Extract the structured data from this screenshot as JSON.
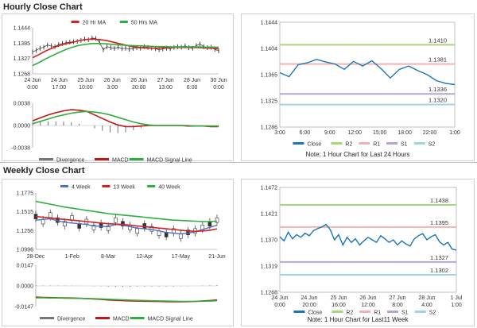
{
  "titles": {
    "hourly": "Hourly Close Chart",
    "weekly": "Weekly Close Chart"
  },
  "notes": {
    "hourly": "Note: 1 Hour Chart for Last 24 Hours",
    "weekly": "Note: 1 Hour Chart for Last11 Week"
  },
  "colors": {
    "price": "#333333",
    "ma_short": "#d42020",
    "ma_long": "#2fae3f",
    "four_week": "#4a74c8",
    "macd": "#c01818",
    "signal": "#2fae3f",
    "divergence": "#777777",
    "close": "#1b75b8",
    "r2": "#a8d67a",
    "r1": "#f0b2b2",
    "s1": "#b9a3d0",
    "s2": "#9fd3e8"
  },
  "chart_data": [
    {
      "id": "hourly_price",
      "type": "line",
      "x_ticks": [
        "24 Jun\n0:00",
        "24 Jun\n17:00",
        "25 Jun\n10:00",
        "26 Jun\n3:00",
        "26 Jun\n20:00",
        "27 Jun\n13:00",
        "28 Jun\n6:00",
        "30 Jun\n0:00"
      ],
      "y_ticks": [
        "1.1444",
        "1.1385",
        "1.1327",
        "1.1268"
      ],
      "ylim": [
        1.1268,
        1.1444
      ],
      "legend": [
        "20 Hr MA",
        "50 Hrs MA"
      ],
      "series": [
        {
          "name": "Price",
          "style": "ohlc",
          "values": [
            1.1352,
            1.1358,
            1.1366,
            1.137,
            1.1378,
            1.1375,
            1.1372,
            1.138,
            1.1384,
            1.1387,
            1.1389,
            1.1391,
            1.1392,
            1.1396,
            1.1401,
            1.1398,
            1.1405,
            1.1403,
            1.1388,
            1.136,
            1.1372,
            1.1368,
            1.1365,
            1.137,
            1.1364,
            1.1366,
            1.1362,
            1.1365,
            1.1368,
            1.1366,
            1.1372,
            1.1369,
            1.1367,
            1.1364,
            1.136,
            1.1363,
            1.1366,
            1.1364,
            1.1369,
            1.1372,
            1.137,
            1.1375,
            1.1368,
            1.1366,
            1.1376,
            1.1382,
            1.1372,
            1.1368,
            1.137,
            1.1362,
            1.1356
          ]
        },
        {
          "name": "20 Hr MA",
          "values": [
            1.133,
            1.1342,
            1.1356,
            1.1367,
            1.1376,
            1.1383,
            1.1388,
            1.1395,
            1.1399,
            1.1401,
            1.1399,
            1.1396,
            1.139,
            1.1384,
            1.1378,
            1.1372,
            1.1369,
            1.1367,
            1.1366,
            1.1366,
            1.1368,
            1.1369,
            1.1369,
            1.1369,
            1.1369,
            1.1368,
            1.1367,
            1.1366,
            1.1364
          ]
        },
        {
          "name": "50 Hrs MA",
          "values": [
            1.13,
            1.1312,
            1.1326,
            1.1338,
            1.135,
            1.1361,
            1.137,
            1.1377,
            1.1381,
            1.1384,
            1.1384,
            1.1383,
            1.1381,
            1.1379,
            1.1377,
            1.1376,
            1.1375,
            1.1374,
            1.1373,
            1.1372,
            1.1372,
            1.1371,
            1.1371,
            1.1371,
            1.1371,
            1.1371,
            1.137,
            1.137,
            1.137
          ]
        }
      ]
    },
    {
      "id": "hourly_macd",
      "type": "line",
      "y_ticks": [
        "0.0038",
        "0.0000",
        "-0.0038"
      ],
      "ylim": [
        -0.0038,
        0.0038
      ],
      "legend": [
        "Divergence",
        "MACD",
        "MACD Signal Line"
      ],
      "series": [
        {
          "name": "MACD",
          "values": [
            0.0008,
            0.0013,
            0.0018,
            0.0022,
            0.0025,
            0.0027,
            0.0026,
            0.0024,
            0.0018,
            0.0012,
            0.0006,
            0.0001,
            -0.0002,
            -0.0002,
            -0.0001,
            0,
            0,
            0,
            0,
            0,
            -0.0001,
            -0.0001,
            -0.0001,
            -0.0002,
            -0.0002
          ]
        },
        {
          "name": "MACD Signal Line",
          "values": [
            0.0003,
            0.0007,
            0.0011,
            0.0015,
            0.0018,
            0.0021,
            0.0023,
            0.0024,
            0.0023,
            0.0021,
            0.0018,
            0.0014,
            0.001,
            0.0006,
            0.0003,
            0.0001,
            0,
            0,
            0,
            0,
            0,
            -0.0001,
            -0.0001,
            -0.0001,
            -0.0001
          ]
        },
        {
          "name": "Divergence",
          "values": [
            0.0005,
            0.0006,
            0.0007,
            0.0007,
            0.0007,
            0.0006,
            0.0003,
            0,
            -0.0005,
            -0.0009,
            -0.0012,
            -0.0013,
            -0.0012,
            -0.0008,
            -0.0004,
            -0.0001,
            0,
            0,
            0,
            0,
            -0.0001,
            0,
            0,
            -0.0001,
            -0.0001
          ]
        }
      ]
    },
    {
      "id": "hourly_levels",
      "type": "line",
      "x_ticks": [
        "3:00",
        "6:00",
        "9:00",
        "12:00",
        "15:00",
        "18:00",
        "22:00",
        "1:00"
      ],
      "y_ticks": [
        "1.1444",
        "1.1404",
        "1.1365",
        "1.1325",
        "1.1286"
      ],
      "ylim": [
        1.1286,
        1.1444
      ],
      "legend": [
        "Close",
        "R2",
        "R1",
        "S1",
        "S2"
      ],
      "levels": [
        {
          "name": "R2",
          "value": 1.141,
          "label": "1.1410"
        },
        {
          "name": "R1",
          "value": 1.1381,
          "label": "1.1381"
        },
        {
          "name": "S1",
          "value": 1.1336,
          "label": "1.1336"
        },
        {
          "name": "S2",
          "value": 1.132,
          "label": "1.1320"
        }
      ],
      "series": [
        {
          "name": "Close",
          "values": [
            1.1368,
            1.1362,
            1.138,
            1.1383,
            1.1388,
            1.1384,
            1.1381,
            1.1373,
            1.1385,
            1.1378,
            1.1386,
            1.1374,
            1.136,
            1.1373,
            1.1378,
            1.1371,
            1.1365,
            1.1356,
            1.1352,
            1.135
          ]
        }
      ]
    },
    {
      "id": "weekly_price",
      "type": "line",
      "x_ticks": [
        "28-Dec",
        "1-Feb",
        "8-Mar",
        "12-Apr",
        "17-May",
        "21-Jun"
      ],
      "y_ticks": [
        "1.1775",
        "1.1515",
        "1.1256",
        "1.0996"
      ],
      "ylim": [
        1.0996,
        1.1775
      ],
      "legend": [
        "4 Week",
        "13 Week",
        "40 Week"
      ],
      "series": [
        {
          "name": "Price",
          "style": "candle",
          "values": [
            1.145,
            1.138,
            1.147,
            1.14,
            1.135,
            1.143,
            1.132,
            1.138,
            1.13,
            1.133,
            1.129,
            1.14,
            1.135,
            1.13,
            1.125,
            1.132,
            1.128,
            1.122,
            1.12,
            1.125,
            1.118,
            1.123,
            1.125,
            1.13,
            1.135,
            1.14
          ]
        },
        {
          "name": "4 Week",
          "values": [
            1.14,
            1.141,
            1.142,
            1.139,
            1.137,
            1.136,
            1.135,
            1.134,
            1.132,
            1.1315,
            1.131,
            1.134,
            1.133,
            1.131,
            1.129,
            1.128,
            1.127,
            1.125,
            1.123,
            1.122,
            1.121,
            1.122,
            1.124,
            1.127,
            1.13,
            1.133
          ]
        },
        {
          "name": "13 Week",
          "values": [
            1.145,
            1.144,
            1.143,
            1.142,
            1.141,
            1.14,
            1.139,
            1.138,
            1.137,
            1.136,
            1.135,
            1.1345,
            1.134,
            1.133,
            1.132,
            1.131,
            1.13,
            1.129,
            1.128,
            1.127,
            1.126,
            1.125,
            1.1245,
            1.125,
            1.126,
            1.128
          ]
        },
        {
          "name": "40 Week",
          "values": [
            1.166,
            1.164,
            1.162,
            1.16,
            1.158,
            1.1565,
            1.155,
            1.1535,
            1.152,
            1.1505,
            1.149,
            1.148,
            1.147,
            1.146,
            1.145,
            1.144,
            1.143,
            1.142,
            1.141,
            1.14,
            1.1395,
            1.139,
            1.1385,
            1.138,
            1.138,
            1.1385
          ]
        }
      ]
    },
    {
      "id": "weekly_macd",
      "type": "line",
      "y_ticks": [
        "0.0147",
        "0.0000",
        "-0.0147"
      ],
      "ylim": [
        -0.0147,
        0.0147
      ],
      "legend": [
        "Divergence",
        "MACD",
        "MACD Signal Line"
      ],
      "series": [
        {
          "name": "MACD",
          "values": [
            -0.008,
            -0.0082,
            -0.0083,
            -0.0084,
            -0.0085,
            -0.0086,
            -0.0088,
            -0.009,
            -0.0093,
            -0.0096,
            -0.01,
            -0.0103,
            -0.0105,
            -0.0107,
            -0.0108,
            -0.0109,
            -0.011,
            -0.0111,
            -0.0112,
            -0.0113,
            -0.0113,
            -0.0112,
            -0.011,
            -0.0107,
            -0.0104,
            -0.01
          ]
        },
        {
          "name": "MACD Signal Line",
          "values": [
            -0.0085,
            -0.0085,
            -0.0086,
            -0.0086,
            -0.0087,
            -0.0088,
            -0.0089,
            -0.009,
            -0.0091,
            -0.0093,
            -0.0095,
            -0.0097,
            -0.0099,
            -0.0101,
            -0.0103,
            -0.0104,
            -0.0106,
            -0.0107,
            -0.0108,
            -0.0109,
            -0.011,
            -0.011,
            -0.011,
            -0.0109,
            -0.0108,
            -0.0106
          ]
        },
        {
          "name": "Divergence",
          "values": [
            0.0005,
            0.0003,
            0.0003,
            0.0002,
            0.0002,
            0.0002,
            0.0001,
            0,
            -0.0002,
            -0.0003,
            -0.0005,
            -0.0006,
            -0.0006,
            -0.0006,
            -0.0005,
            -0.0005,
            -0.0004,
            -0.0004,
            -0.0004,
            -0.0004,
            -0.0003,
            -0.0002,
            0,
            0.0002,
            0.0004,
            0.0006
          ]
        }
      ]
    },
    {
      "id": "weekly_levels",
      "type": "line",
      "x_ticks": [
        "24 Jun\n0:00",
        "24 Jun\n20:00",
        "25 Jun\n16:00",
        "26 Jun\n12:00",
        "27 Jun\n8:00",
        "28 Jun\n4:00",
        "1 Jul\n1:00"
      ],
      "y_ticks": [
        "1.1472",
        "1.1421",
        "1.1370",
        "1.1319",
        "1.1268"
      ],
      "ylim": [
        1.1268,
        1.1472
      ],
      "legend": [
        "Close",
        "R2",
        "R1",
        "S1",
        "S2"
      ],
      "levels": [
        {
          "name": "R2",
          "value": 1.1438,
          "label": "1.1438"
        },
        {
          "name": "R1",
          "value": 1.1395,
          "label": "1.1395"
        },
        {
          "name": "S1",
          "value": 1.1327,
          "label": "1.1327"
        },
        {
          "name": "S2",
          "value": 1.1302,
          "label": "1.1302"
        }
      ],
      "series": [
        {
          "name": "Close",
          "values": [
            1.1376,
            1.1368,
            1.1385,
            1.1372,
            1.138,
            1.1375,
            1.1383,
            1.1378,
            1.1388,
            1.1392,
            1.1395,
            1.14,
            1.139,
            1.137,
            1.138,
            1.136,
            1.1375,
            1.1365,
            1.1372,
            1.136,
            1.1368,
            1.1375,
            1.137,
            1.1365,
            1.1378,
            1.1372,
            1.1365,
            1.137,
            1.136,
            1.1368,
            1.1362,
            1.1358,
            1.1372,
            1.1378,
            1.1382,
            1.137,
            1.1376,
            1.138,
            1.1366,
            1.136,
            1.1365,
            1.1352,
            1.135
          ]
        }
      ]
    }
  ]
}
